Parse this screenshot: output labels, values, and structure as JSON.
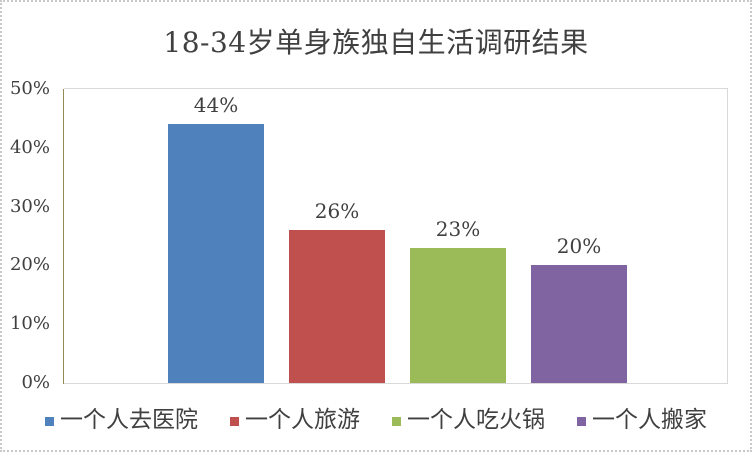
{
  "chart_data": {
    "type": "bar",
    "title": "18-34岁单身族独自生活调研结果",
    "categories": [
      "一个人去医院",
      "一个人旅游",
      "一个人吃火锅",
      "一个人搬家"
    ],
    "values": [
      44,
      26,
      23,
      20
    ],
    "value_labels": [
      "44%",
      "26%",
      "23%",
      "20%"
    ],
    "colors": [
      "#4F81BD",
      "#C0504D",
      "#9BBB59",
      "#8064A2"
    ],
    "xlabel": "",
    "ylabel": "",
    "ylim": [
      0,
      50
    ],
    "ytick_values": [
      0,
      10,
      20,
      30,
      40,
      50
    ],
    "ytick_labels": [
      "0%",
      "10%",
      "20%",
      "30%",
      "40%",
      "50%"
    ],
    "grid": false,
    "legend_position": "bottom",
    "legend": [
      "一个人去医院",
      "一个人旅游",
      "一个人吃火锅",
      "一个人搬家"
    ],
    "axis_color": "#948A54",
    "plot_border_color": "#D9D9D9",
    "text_color": "#404040",
    "background": "#FFFFFF"
  }
}
